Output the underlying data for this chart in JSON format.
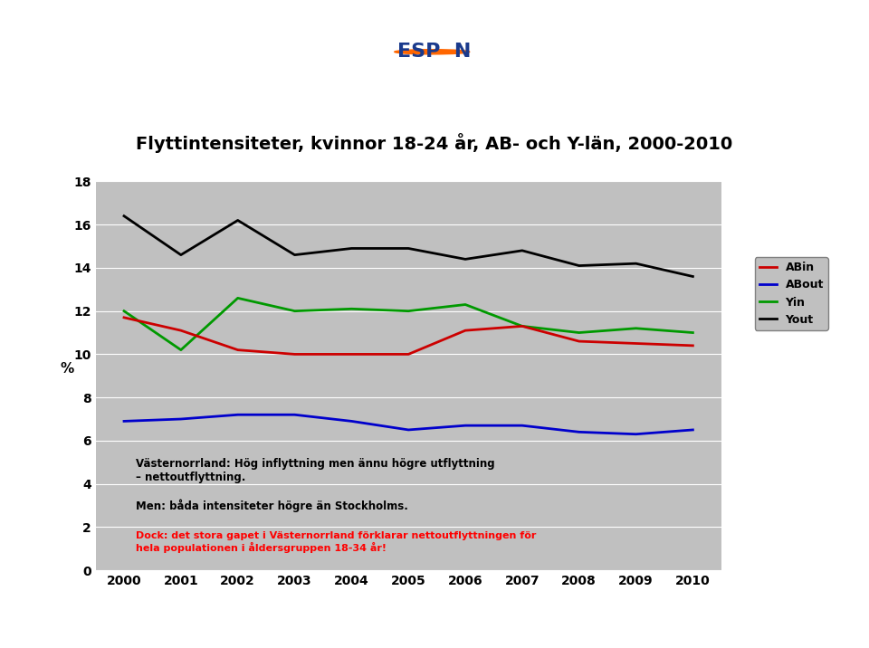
{
  "title": "Flyttintensiteter, kvinnor 18-24 år, AB- och Y-län, 2000-2010",
  "years": [
    2000,
    2001,
    2002,
    2003,
    2004,
    2005,
    2006,
    2007,
    2008,
    2009,
    2010
  ],
  "ABin": [
    11.7,
    11.1,
    10.2,
    10.0,
    10.0,
    10.0,
    11.1,
    11.3,
    10.6,
    10.5,
    10.4
  ],
  "ABout": [
    6.9,
    7.0,
    7.2,
    7.2,
    6.9,
    6.5,
    6.7,
    6.7,
    6.4,
    6.3,
    6.5
  ],
  "Yin": [
    12.0,
    10.2,
    12.6,
    12.0,
    12.1,
    12.0,
    12.3,
    11.3,
    11.0,
    11.2,
    11.0
  ],
  "Yout": [
    16.4,
    14.6,
    16.2,
    14.6,
    14.9,
    14.9,
    14.4,
    14.8,
    14.1,
    14.2,
    13.6
  ],
  "ABin_color": "#cc0000",
  "ABout_color": "#0000cc",
  "Yin_color": "#009900",
  "Yout_color": "#000000",
  "ylabel": "%",
  "ylim": [
    0,
    18
  ],
  "yticks": [
    0,
    2,
    4,
    6,
    8,
    10,
    12,
    14,
    16,
    18
  ],
  "bg_color": "#c0c0c0",
  "outer_bg": "#ffffff",
  "border_color": "#1a3a8c",
  "annotation1_bold": "Västernorrland: Hög inflyttning men ännu högre utflyttning\n– nettoutflyttning.",
  "annotation2_bold": "Men: båda intensiteter högre än Stockholms.",
  "annotation3_red": "Dock: det stora gapet i Västernorrland förklarar nettoutflyttningen för\nhela populationen i åldersgruppen 18-34 år!",
  "header_bg": "#ffffff",
  "colorbar_colors": [
    "#cc2200",
    "#dd4400",
    "#ee6600",
    "#ffaa00",
    "#ffdd00",
    "#eeff00",
    "#bbee00",
    "#88cc00"
  ],
  "line_width": 2.0
}
